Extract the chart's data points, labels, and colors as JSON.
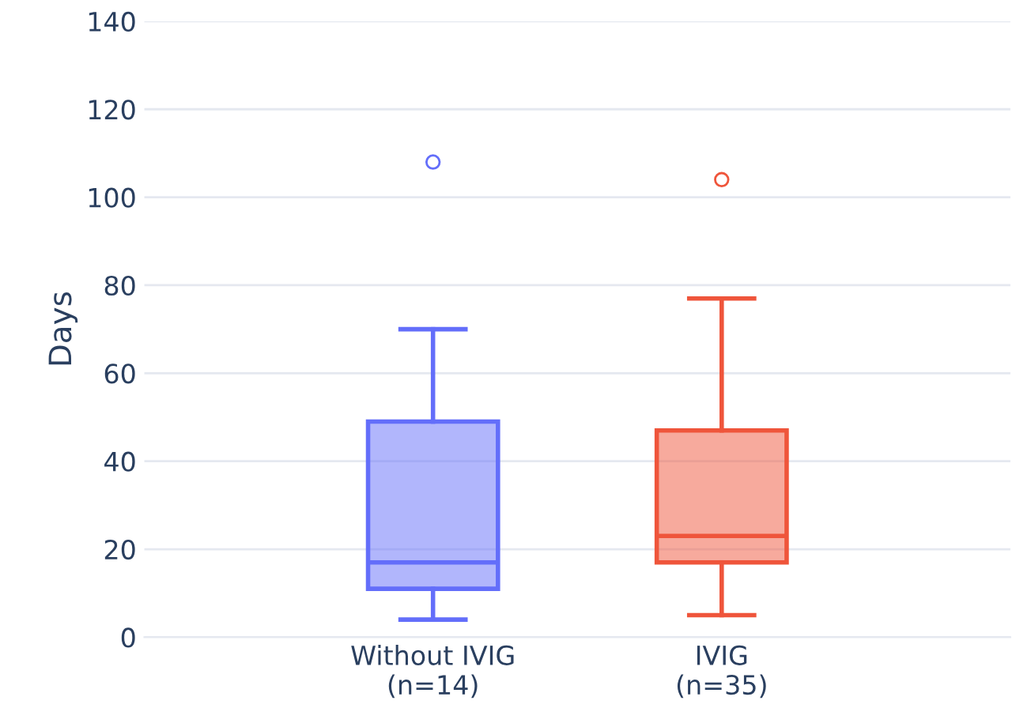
{
  "chart_data": {
    "type": "box",
    "ylabel": "Days",
    "categories": [
      "Without IVIG\n(n=14)",
      "IVIG\n(n=35)"
    ],
    "boxes": [
      {
        "low": 4,
        "q1": 11,
        "median": 17,
        "q3": 49,
        "high": 70,
        "outliers": [
          108
        ]
      },
      {
        "low": 5,
        "q1": 17,
        "median": 23,
        "q3": 47,
        "high": 77,
        "outliers": [
          104
        ]
      }
    ],
    "colors": [
      "#636efa",
      "#ef553b"
    ],
    "ylim": [
      0,
      140
    ],
    "yticks": [
      0,
      20,
      40,
      60,
      80,
      100,
      120,
      140
    ],
    "grid": "y"
  }
}
